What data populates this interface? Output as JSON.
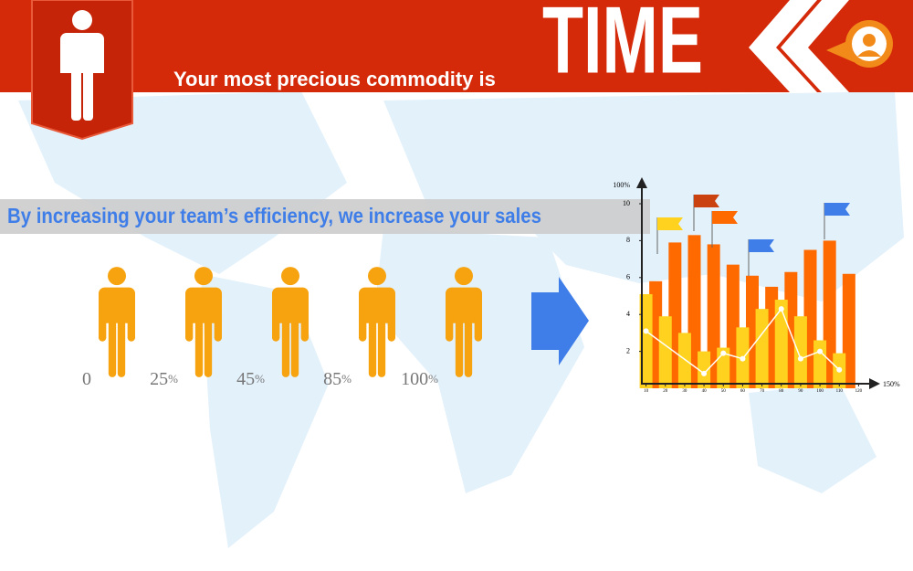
{
  "header": {
    "subtitle": "Your most precious commodity is",
    "title": "TIME"
  },
  "banner": "By increasing your team’s efficiency, we increase your sales",
  "figures": [
    {
      "number": 0
    },
    {
      "number": 25,
      "unit": "%"
    },
    {
      "number": 45,
      "unit": "%"
    },
    {
      "number": 85,
      "unit": "%"
    },
    {
      "number": 100,
      "unit": "%"
    }
  ],
  "chart": {
    "type": "bar",
    "y_end_label": "100%",
    "x_end_label": "150%",
    "xlim": [
      5,
      125
    ],
    "xticks": [
      10,
      20,
      30,
      40,
      50,
      60,
      70,
      80,
      90,
      100,
      110,
      120
    ],
    "ylim": [
      0,
      10
    ],
    "yticks": [
      2,
      4,
      6,
      8,
      10
    ],
    "series": [
      {
        "color": "#ff6a00",
        "x": [
          15,
          25,
          35,
          45,
          55,
          65,
          75,
          85,
          95,
          105,
          115
        ],
        "values": [
          5.8,
          7.9,
          8.3,
          7.8,
          6.7,
          6.1,
          5.5,
          6.3,
          7.5,
          8.0,
          6.2
        ]
      },
      {
        "color": "#ffd21f",
        "x": [
          10,
          20,
          30,
          40,
          50,
          60,
          70,
          80,
          90,
          100,
          110
        ],
        "values": [
          5.1,
          3.9,
          3.0,
          2.0,
          2.2,
          3.3,
          4.3,
          4.8,
          3.9,
          2.6,
          1.9
        ]
      },
      {
        "type": "line",
        "color": "#ffffff",
        "x": [
          10,
          40,
          50,
          60,
          80,
          90,
          100,
          110
        ],
        "values": [
          3.1,
          0.8,
          1.9,
          1.6,
          4.3,
          1.6,
          2.0,
          1.0
        ]
      }
    ]
  }
}
